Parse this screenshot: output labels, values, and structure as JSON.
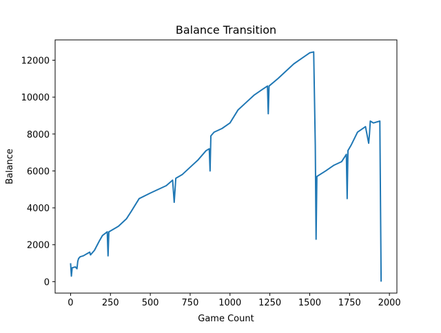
{
  "chart_data": {
    "type": "line",
    "title": "Balance Transition",
    "x_label": "Game Count",
    "y_label": "Balance",
    "x": [
      0,
      5,
      10,
      30,
      40,
      45,
      50,
      60,
      80,
      100,
      120,
      125,
      150,
      180,
      200,
      230,
      235,
      240,
      280,
      300,
      350,
      380,
      430,
      500,
      550,
      600,
      640,
      650,
      660,
      700,
      750,
      800,
      850,
      870,
      875,
      880,
      900,
      950,
      1000,
      1050,
      1100,
      1150,
      1200,
      1235,
      1240,
      1245,
      1300,
      1350,
      1400,
      1450,
      1500,
      1525,
      1535,
      1540,
      1545,
      1600,
      1650,
      1700,
      1730,
      1735,
      1740,
      1760,
      1800,
      1850,
      1870,
      1875,
      1880,
      1900,
      1940,
      1948
    ],
    "series": [
      {
        "name": "Balance",
        "color": "#1f77b4",
        "values": [
          1000,
          300,
          750,
          800,
          700,
          1100,
          1250,
          1350,
          1400,
          1500,
          1600,
          1450,
          1700,
          2200,
          2500,
          2700,
          1400,
          2700,
          2900,
          3000,
          3400,
          3800,
          4500,
          4800,
          5000,
          5200,
          5500,
          4300,
          5600,
          5800,
          6200,
          6600,
          7100,
          7200,
          6000,
          7900,
          8100,
          8300,
          8600,
          9300,
          9700,
          10100,
          10400,
          10600,
          9100,
          10600,
          11000,
          11400,
          11800,
          12100,
          12400,
          12450,
          7400,
          2300,
          5700,
          6000,
          6300,
          6500,
          6900,
          4500,
          7100,
          7400,
          8100,
          8400,
          7500,
          8000,
          8700,
          8600,
          8700,
          0
        ]
      }
    ],
    "xlim": [
      -97,
      2047
    ],
    "ylim": [
      -620,
      13100
    ],
    "xticks": [
      0,
      250,
      500,
      750,
      1000,
      1250,
      1500,
      1750,
      2000
    ],
    "yticks": [
      0,
      2000,
      4000,
      6000,
      8000,
      10000,
      12000
    ]
  }
}
